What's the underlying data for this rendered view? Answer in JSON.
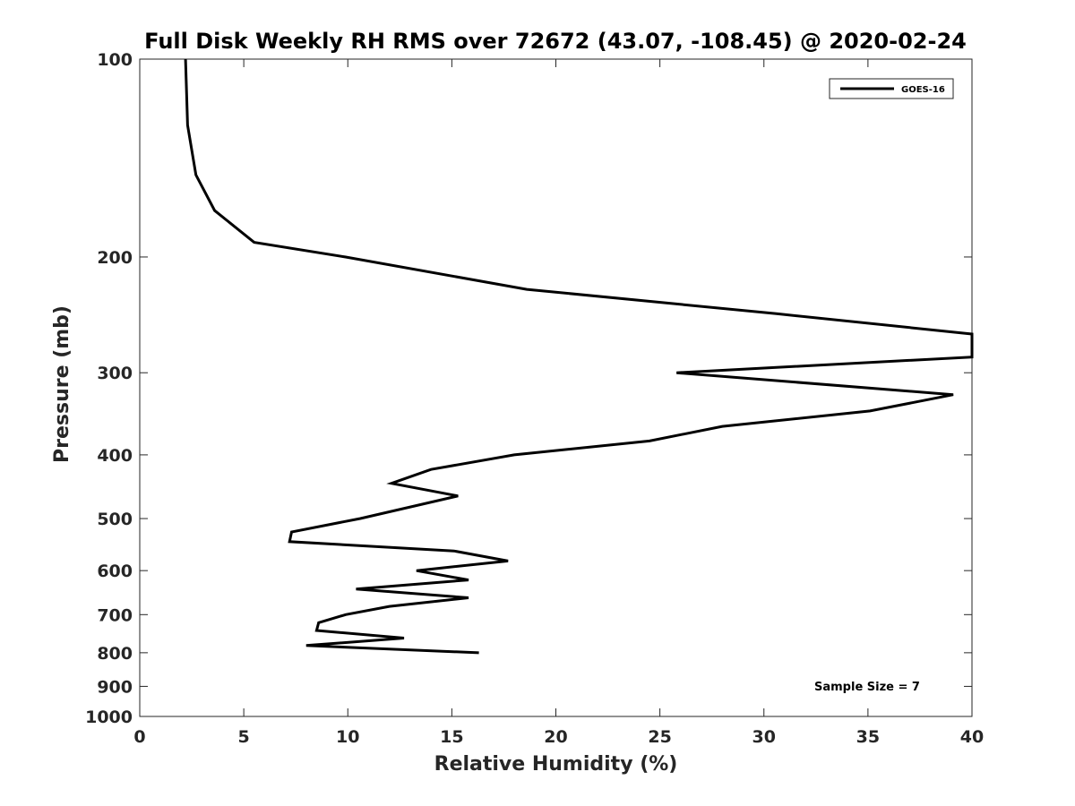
{
  "chart_data": {
    "type": "line",
    "title": "Full Disk Weekly RH RMS over 72672 (43.07, -108.45) @ 2020-02-24",
    "xlabel": "Relative Humidity (%)",
    "ylabel": "Pressure (mb)",
    "xlim": [
      0,
      40
    ],
    "ylim": [
      100,
      1000
    ],
    "y_scale": "log",
    "y_reversed": true,
    "x_ticks": [
      0,
      5,
      10,
      15,
      20,
      25,
      30,
      35,
      40
    ],
    "y_ticks": [
      100,
      200,
      300,
      400,
      500,
      600,
      700,
      800,
      900,
      1000
    ],
    "grid": false,
    "legend_position": "top-right",
    "series": [
      {
        "name": "GOES-16",
        "color": "#000000",
        "points": [
          [
            2.2,
            100
          ],
          [
            2.3,
            126
          ],
          [
            2.7,
            150
          ],
          [
            3.6,
            170
          ],
          [
            5.5,
            190
          ],
          [
            9.9,
            200
          ],
          [
            18.6,
            224
          ],
          [
            30.6,
            244
          ],
          [
            40.0,
            262
          ],
          [
            40.0,
            284
          ],
          [
            25.8,
            300
          ],
          [
            39.1,
            324
          ],
          [
            35.1,
            343
          ],
          [
            28.0,
            362
          ],
          [
            24.5,
            381
          ],
          [
            18.0,
            400
          ],
          [
            14.0,
            421
          ],
          [
            12.1,
            442
          ],
          [
            15.3,
            462
          ],
          [
            10.6,
            500
          ],
          [
            7.3,
            524
          ],
          [
            7.2,
            542
          ],
          [
            15.1,
            560
          ],
          [
            17.7,
            580
          ],
          [
            13.3,
            600
          ],
          [
            15.8,
            620
          ],
          [
            10.4,
            640
          ],
          [
            15.8,
            660
          ],
          [
            12.0,
            680
          ],
          [
            9.9,
            700
          ],
          [
            8.6,
            720
          ],
          [
            8.5,
            740
          ],
          [
            12.7,
            760
          ],
          [
            8.0,
            780
          ],
          [
            16.3,
            800
          ]
        ]
      }
    ],
    "annotations": [
      {
        "text": "Sample Size = 7"
      }
    ]
  }
}
